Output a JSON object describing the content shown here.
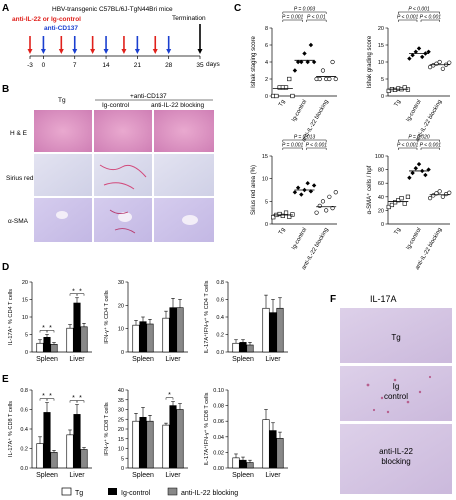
{
  "panels": {
    "A": "A",
    "B": "B",
    "C": "C",
    "D": "D",
    "E": "E",
    "F": "F"
  },
  "panel_a": {
    "title": "HBV-transgenic C57BL/6J-TgN44Bri mice",
    "red_label": "anti-IL-22 or Ig-control",
    "blue_label": "anti-CD137",
    "termination": "Termination",
    "ticks": [
      "-3",
      "0",
      "7",
      "14",
      "21",
      "28",
      "35"
    ],
    "unit": "days",
    "colors": {
      "red": "#e0201b",
      "blue": "#1a3fd0"
    }
  },
  "panel_b": {
    "col_tg": "Tg",
    "header": "+anti-CD137",
    "col_ig": "Ig-control",
    "col_block": "anti-IL-22 blocking",
    "rows": [
      "H & E",
      "Sirius red",
      "α-SMA"
    ]
  },
  "panel_c_text": {
    "ishak_staging": {
      "ylabel": "Ishak staging score",
      "yticks": [
        "0",
        "2",
        "4",
        "6",
        "8"
      ],
      "pvals": [
        "P = 0.003",
        "P = 0.001",
        "P < 0.01"
      ]
    },
    "ishak_grading": {
      "ylabel": "Ishak grading score",
      "yticks": [
        "0",
        "5",
        "10",
        "15",
        "20"
      ],
      "pvals": [
        "P < 0.001",
        "P < 0.001",
        "P < 0.001"
      ]
    },
    "sirius": {
      "ylabel": "Sirius red area (%)",
      "yticks": [
        "0",
        "5",
        "10",
        "15"
      ],
      "pvals": [
        "P = 0.013",
        "P = 0.001",
        "P < 0.001"
      ]
    },
    "sma": {
      "ylabel": "α-SMA⁺ cells / hpf",
      "yticks": [
        "0",
        "20",
        "40",
        "60",
        "80",
        "100"
      ],
      "pvals": [
        "P = 0.020",
        "P < 0.001",
        "P < 0.001"
      ]
    },
    "xcats": [
      "Tg",
      "Ig-control",
      "anti-IL-22 blocking"
    ]
  },
  "panel_d_text": {
    "il17": {
      "ylabel": "IL-17A⁺ % CD4 T cells",
      "yticks": [
        "0",
        "5",
        "10",
        "15",
        "20"
      ]
    },
    "ifng": {
      "ylabel": "IFN-γ⁺ % CD4 T cells",
      "yticks": [
        "0",
        "10",
        "20",
        "30"
      ]
    },
    "dual": {
      "ylabel": "IL-17A⁺IFN-γ⁺ % CD4 T cells",
      "yticks": [
        "0.0",
        "0.2",
        "0.4",
        "0.6",
        "0.8"
      ]
    },
    "groups": [
      "Spleen",
      "Liver"
    ]
  },
  "panel_e_text": {
    "il17": {
      "ylabel": "IL-17A⁺ % CD8 T cells",
      "yticks": [
        "0.0",
        "0.2",
        "0.4",
        "0.6",
        "0.8"
      ]
    },
    "ifng": {
      "ylabel": "IFN-γ⁺ % CD8 T cells",
      "yticks": [
        "0",
        "5",
        "10",
        "15",
        "20",
        "25",
        "30",
        "35",
        "40"
      ]
    },
    "dual": {
      "ylabel": "IL-17A⁺IFN-γ⁺ % CD8 T cells",
      "yticks": [
        "0.00",
        "0.02",
        "0.04",
        "0.06",
        "0.08",
        "0.10"
      ]
    },
    "groups": [
      "Spleen",
      "Liver"
    ]
  },
  "legend": {
    "tg": "Tg",
    "ig": "Ig-control",
    "block": "anti-IL-22 blocking"
  },
  "panel_f": {
    "title": "IL-17A",
    "rows": [
      "Tg",
      "Ig control",
      "anti-IL-22 blocking"
    ]
  },
  "chart_data": [
    {
      "type": "scatter",
      "panel": "C1",
      "ylabel": "Ishak staging score",
      "ylim": [
        0,
        8
      ],
      "categories": [
        "Tg",
        "Ig-control",
        "anti-IL-22 blocking"
      ],
      "points": [
        [
          0,
          0,
          1,
          1,
          1,
          2,
          0
        ],
        [
          3,
          4,
          4,
          5,
          4,
          6,
          4
        ],
        [
          2,
          2,
          3,
          2,
          2,
          4,
          2
        ]
      ],
      "means": [
        0.9,
        4.2,
        2.3
      ]
    },
    {
      "type": "scatter",
      "panel": "C2",
      "ylabel": "Ishak grading score",
      "ylim": [
        0,
        20
      ],
      "categories": [
        "Tg",
        "Ig-control",
        "anti-IL-22 blocking"
      ],
      "points": [
        [
          1.5,
          2,
          1.8,
          2.2,
          2,
          2.5,
          1.9
        ],
        [
          11,
          12,
          13,
          14,
          11.5,
          12.5,
          13
        ],
        [
          8.5,
          9,
          9.5,
          10,
          8,
          9.2,
          9.8
        ]
      ],
      "means": [
        2,
        12.5,
        9.2
      ]
    },
    {
      "type": "scatter",
      "panel": "C3",
      "ylabel": "Sirius red area (%)",
      "ylim": [
        0,
        15
      ],
      "categories": [
        "Tg",
        "Ig-control",
        "anti-IL-22 blocking"
      ],
      "points": [
        [
          1.5,
          2,
          2.2,
          1.8,
          2.5,
          1.6,
          2.1
        ],
        [
          7,
          8,
          6.5,
          7.5,
          9,
          7.2,
          8.5
        ],
        [
          2.5,
          4,
          5,
          3,
          6,
          3.5,
          7
        ]
      ],
      "means": [
        2,
        7.5,
        3.8
      ]
    },
    {
      "type": "scatter",
      "panel": "C4",
      "ylabel": "α-SMA⁺ cells / hpf",
      "ylim": [
        0,
        100
      ],
      "categories": [
        "Tg",
        "Ig-control",
        "anti-IL-22 blocking"
      ],
      "points": [
        [
          25,
          28,
          32,
          35,
          38,
          30,
          40
        ],
        [
          68,
          75,
          82,
          88,
          78,
          72,
          80
        ],
        [
          38,
          42,
          45,
          48,
          40,
          44,
          46
        ]
      ],
      "means": [
        33,
        78,
        43
      ]
    },
    {
      "type": "bar",
      "panel": "D1",
      "ylabel": "IL-17A⁺ % CD4 T cells",
      "ylim": [
        0,
        20
      ],
      "categories": [
        "Spleen",
        "Liver"
      ],
      "series": [
        {
          "name": "Tg",
          "values": [
            2.5,
            6.8
          ],
          "err": [
            1,
            1
          ]
        },
        {
          "name": "Ig-control",
          "values": [
            4.2,
            14
          ],
          "err": [
            0.8,
            1.5
          ]
        },
        {
          "name": "anti-IL-22 blocking",
          "values": [
            2.2,
            7.2
          ],
          "err": [
            0.5,
            1
          ]
        }
      ]
    },
    {
      "type": "bar",
      "panel": "D2",
      "ylabel": "IFN-γ⁺ % CD4 T cells",
      "ylim": [
        0,
        30
      ],
      "categories": [
        "Spleen",
        "Liver"
      ],
      "series": [
        {
          "name": "Tg",
          "values": [
            11.5,
            14.5
          ],
          "err": [
            2,
            3
          ]
        },
        {
          "name": "Ig-control",
          "values": [
            13,
            19
          ],
          "err": [
            2,
            4
          ]
        },
        {
          "name": "anti-IL-22 blocking",
          "values": [
            12,
            19
          ],
          "err": [
            2,
            3.5
          ]
        }
      ]
    },
    {
      "type": "bar",
      "panel": "D3",
      "ylabel": "IL-17A⁺IFN-γ⁺ % CD4 T cells",
      "ylim": [
        0,
        0.8
      ],
      "categories": [
        "Spleen",
        "Liver"
      ],
      "series": [
        {
          "name": "Tg",
          "values": [
            0.1,
            0.5
          ],
          "err": [
            0.04,
            0.15
          ]
        },
        {
          "name": "Ig-control",
          "values": [
            0.11,
            0.45
          ],
          "err": [
            0.03,
            0.15
          ]
        },
        {
          "name": "anti-IL-22 blocking",
          "values": [
            0.08,
            0.5
          ],
          "err": [
            0.03,
            0.12
          ]
        }
      ]
    },
    {
      "type": "bar",
      "panel": "E1",
      "ylabel": "IL-17A⁺ % CD8 T cells",
      "ylim": [
        0,
        0.8
      ],
      "categories": [
        "Spleen",
        "Liver"
      ],
      "series": [
        {
          "name": "Tg",
          "values": [
            0.25,
            0.34
          ],
          "err": [
            0.07,
            0.05
          ]
        },
        {
          "name": "Ig-control",
          "values": [
            0.57,
            0.55
          ],
          "err": [
            0.1,
            0.1
          ]
        },
        {
          "name": "anti-IL-22 blocking",
          "values": [
            0.16,
            0.19
          ],
          "err": [
            0.02,
            0.02
          ]
        }
      ]
    },
    {
      "type": "bar",
      "panel": "E2",
      "ylabel": "IFN-γ⁺ % CD8 T cells",
      "ylim": [
        0,
        40
      ],
      "categories": [
        "Spleen",
        "Liver"
      ],
      "series": [
        {
          "name": "Tg",
          "values": [
            24,
            22
          ],
          "err": [
            4,
            1
          ]
        },
        {
          "name": "Ig-control",
          "values": [
            26,
            32
          ],
          "err": [
            5,
            2
          ]
        },
        {
          "name": "anti-IL-22 blocking",
          "values": [
            24,
            30
          ],
          "err": [
            3,
            3
          ]
        }
      ]
    },
    {
      "type": "bar",
      "panel": "E3",
      "ylabel": "IL-17A⁺IFN-γ⁺ % CD8 T cells",
      "ylim": [
        0,
        0.1
      ],
      "categories": [
        "Spleen",
        "Liver"
      ],
      "series": [
        {
          "name": "Tg",
          "values": [
            0.013,
            0.062
          ],
          "err": [
            0.005,
            0.013
          ]
        },
        {
          "name": "Ig-control",
          "values": [
            0.01,
            0.048
          ],
          "err": [
            0.004,
            0.01
          ]
        },
        {
          "name": "anti-IL-22 blocking",
          "values": [
            0.007,
            0.038
          ],
          "err": [
            0.003,
            0.008
          ]
        }
      ]
    }
  ]
}
